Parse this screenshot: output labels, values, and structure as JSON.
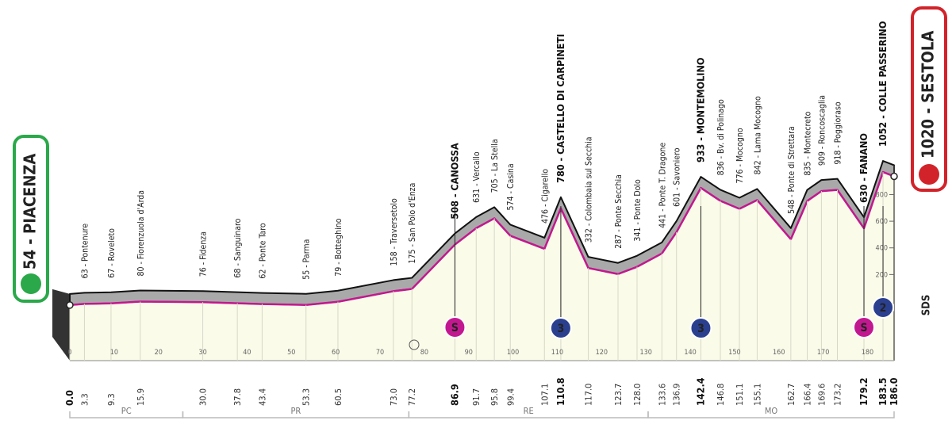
{
  "chart_data": {
    "type": "area",
    "x": [
      0.0,
      3.3,
      9.3,
      15.9,
      30.0,
      37.8,
      43.4,
      53.3,
      60.5,
      73.0,
      77.2,
      86.9,
      91.7,
      95.8,
      99.4,
      107.1,
      110.8,
      117.0,
      123.7,
      128.0,
      133.6,
      136.9,
      142.4,
      146.8,
      151.1,
      155.1,
      162.7,
      166.4,
      169.6,
      173.2,
      179.2,
      183.5,
      186.0
    ],
    "x_labels": [
      "0.0",
      "3.3",
      "9.3",
      "15.9",
      "30.0",
      "37.8",
      "43.4",
      "53.3",
      "60.5",
      "73.0",
      "77.2",
      "86.9",
      "91.7",
      "95.8",
      "99.4",
      "107.1",
      "110.8",
      "117.0",
      "123.7",
      "128.0",
      "133.6",
      "136.9",
      "142.4",
      "146.8",
      "151.1",
      "155.1",
      "162.7",
      "166.4",
      "169.6",
      "173.2",
      "179.2",
      "183.5",
      "186.0"
    ],
    "values": [
      54,
      63,
      67,
      80,
      76,
      68,
      62,
      55,
      79,
      158,
      175,
      508,
      631,
      705,
      574,
      476,
      780,
      332,
      287,
      341,
      441,
      601,
      933,
      836,
      776,
      842,
      548,
      835,
      909,
      918,
      630,
      1052,
      1020
    ],
    "places": [
      "54 - PIACENZA",
      "63 - Pontenure",
      "67 - Roveleto",
      "80 - Fiorenzuola d'Arda",
      "76 - Fidenza",
      "68 - Sanguinaro",
      "62 - Ponte Taro",
      "55 - Parma",
      "79 - Botteghino",
      "158 - Traversetolo",
      "175 - San Polo d'Enza",
      "508 - CANOSSA",
      "631 - Vercallo",
      "705 - La Stella",
      "574 - Casina",
      "476 - Cigarello",
      "780 - CASTELLO DI CARPINETI",
      "332 - Colombaia sul Secchia",
      "287 - Ponte Secchia",
      "341 - Ponte Dolo",
      "441 - Ponte T. Dragone",
      "601 - Savoniero",
      "933 - MONTEMOLINO",
      "836 - Bv. di Polinago",
      "776 - Mocogno",
      "842 - Lama Mocogno",
      "548 - Ponte di Strettara",
      "835 - Montecreto",
      "909 - Roncoscaglia",
      "918 - Poggioraso",
      "630 - FANANO",
      "1052 - COLLE PASSERINO",
      "1020 - SESTOLA"
    ],
    "major": [
      true,
      false,
      false,
      false,
      false,
      false,
      false,
      false,
      false,
      false,
      false,
      true,
      false,
      false,
      false,
      false,
      true,
      false,
      false,
      false,
      false,
      false,
      true,
      false,
      false,
      false,
      false,
      false,
      false,
      false,
      true,
      true,
      true
    ],
    "xlim": [
      0,
      186
    ],
    "ylim": [
      0,
      1100
    ],
    "xticks": [
      0,
      10,
      20,
      30,
      40,
      50,
      60,
      70,
      80,
      90,
      100,
      110,
      120,
      130,
      140,
      150,
      160,
      170,
      180
    ],
    "yticks": [
      200,
      400,
      600,
      800
    ],
    "regions": [
      {
        "label": "PC",
        "from": 0,
        "to": 25.5
      },
      {
        "label": "PR",
        "from": 25.5,
        "to": 76.5
      },
      {
        "label": "RE",
        "from": 76.5,
        "to": 130.5
      },
      {
        "label": "MO",
        "from": 130.5,
        "to": 186
      }
    ],
    "markers": [
      {
        "label": "S",
        "km": 86.9,
        "kind": "sprint"
      },
      {
        "label": "3",
        "km": 110.8,
        "kind": "climb"
      },
      {
        "label": "3",
        "km": 142.4,
        "kind": "climb"
      },
      {
        "label": "S",
        "km": 179.2,
        "kind": "sprint"
      },
      {
        "label": "2",
        "km": 183.5,
        "kind": "climb"
      }
    ],
    "logo": "SDS"
  }
}
